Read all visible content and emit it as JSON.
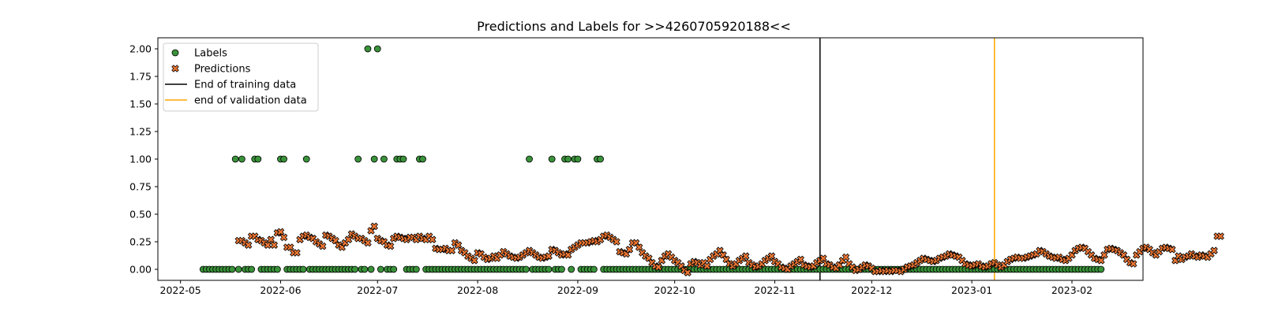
{
  "chart_data": {
    "type": "scatter",
    "title": "Predictions and Labels for >>4260705920188<<",
    "xlabel": "",
    "ylabel": "",
    "x_range": [
      "2022-04-24",
      "2023-02-23"
    ],
    "ylim": [
      -0.1,
      2.1
    ],
    "y_ticks": [
      "0.00",
      "0.25",
      "0.50",
      "0.75",
      "1.00",
      "1.25",
      "1.50",
      "1.75",
      "2.00"
    ],
    "x_ticks": [
      "2022-05",
      "2022-06",
      "2022-07",
      "2022-08",
      "2022-09",
      "2022-10",
      "2022-11",
      "2022-12",
      "2023-01",
      "2023-02"
    ],
    "x_tick_dates": [
      "2022-05-01",
      "2022-06-01",
      "2022-07-01",
      "2022-08-01",
      "2022-09-01",
      "2022-10-01",
      "2022-11-01",
      "2022-12-01",
      "2023-01-01",
      "2023-02-01"
    ],
    "grid": false,
    "legend_position": "top-left",
    "legend": [
      "Labels",
      "Predictions",
      "End of training data",
      "end of validation data"
    ],
    "vlines": [
      {
        "name": "End of training data",
        "date": "2022-11-15",
        "color": "#000000"
      },
      {
        "name": "end of validation data",
        "date": "2023-01-08",
        "color": "#ffa500"
      }
    ],
    "series": [
      {
        "name": "Labels",
        "marker": "circle",
        "color": "#3a923a",
        "start_date": "2022-05-08",
        "values": [
          0,
          0,
          0,
          0,
          0,
          0,
          0,
          0,
          0,
          0,
          1,
          0,
          1,
          0,
          0,
          0,
          1,
          1,
          0,
          0,
          0,
          0,
          0,
          0,
          1,
          1,
          0,
          0,
          0,
          0,
          0,
          0,
          1,
          0,
          0,
          0,
          0,
          0,
          0,
          0,
          0,
          0,
          0,
          0,
          0,
          0,
          0,
          0,
          1,
          0,
          0,
          2,
          0,
          1,
          2,
          0,
          1,
          0,
          0,
          0,
          1,
          1,
          1,
          0,
          0,
          0,
          0,
          1,
          1,
          0,
          0,
          0,
          0,
          0,
          0,
          0,
          0,
          0,
          0,
          0,
          0,
          0,
          0,
          0,
          0,
          0,
          0,
          0,
          0,
          0,
          0,
          0,
          0,
          0,
          0,
          0,
          0,
          0,
          0,
          0,
          0,
          1,
          0,
          0,
          0,
          0,
          0,
          0,
          1,
          0,
          0,
          0,
          1,
          1,
          0,
          1,
          1,
          0,
          0,
          0,
          0,
          0,
          1,
          1,
          0,
          0,
          0,
          0,
          0,
          0,
          0,
          0,
          0,
          0,
          0,
          0,
          0,
          0,
          0,
          0,
          0,
          0,
          0,
          0,
          0,
          0,
          0,
          0,
          0,
          0,
          0,
          0,
          0,
          0,
          0,
          0,
          0,
          0,
          0,
          0,
          0,
          0,
          0,
          0,
          0,
          0,
          0,
          0,
          0,
          0,
          0,
          0,
          0,
          0,
          0,
          0,
          0,
          0,
          0,
          0,
          0,
          0,
          0,
          0,
          0,
          0,
          0,
          0,
          0,
          0,
          0,
          0,
          0,
          0,
          0,
          0,
          0,
          0,
          0,
          0,
          0,
          0,
          0,
          0,
          0,
          0,
          0,
          0,
          0,
          0,
          0,
          0,
          0,
          0,
          0,
          0,
          0,
          0,
          0,
          0,
          0,
          0,
          0,
          0,
          0,
          0,
          0,
          0,
          0,
          0,
          0,
          0,
          0,
          0,
          0,
          0,
          0,
          0,
          0,
          0,
          0,
          0,
          0,
          0,
          0,
          0,
          0,
          0,
          0,
          0,
          0,
          0,
          0,
          0,
          0,
          0,
          0,
          0,
          0,
          0,
          0,
          0,
          0,
          0,
          0,
          0,
          0,
          0,
          0,
          0,
          0,
          0,
          0,
          0,
          0,
          0,
          0,
          0,
          0
        ]
      },
      {
        "name": "Predictions",
        "marker": "x",
        "color": "#ee7733",
        "start_date": "2022-05-19",
        "values": [
          0.26,
          0.26,
          0.24,
          0.22,
          0.3,
          0.3,
          0.27,
          0.26,
          0.24,
          0.22,
          0.27,
          0.22,
          0.33,
          0.34,
          0.29,
          0.2,
          0.2,
          0.15,
          0.15,
          0.27,
          0.3,
          0.31,
          0.29,
          0.28,
          0.25,
          0.23,
          0.21,
          0.31,
          0.3,
          0.28,
          0.26,
          0.22,
          0.2,
          0.24,
          0.27,
          0.32,
          0.3,
          0.28,
          0.28,
          0.26,
          0.24,
          0.35,
          0.39,
          0.28,
          0.26,
          0.25,
          0.22,
          0.21,
          0.28,
          0.3,
          0.29,
          0.28,
          0.27,
          0.29,
          0.29,
          0.27,
          0.3,
          0.28,
          0.27,
          0.3,
          0.27,
          0.19,
          0.18,
          0.18,
          0.19,
          0.17,
          0.17,
          0.24,
          0.22,
          0.17,
          0.15,
          0.12,
          0.1,
          0.08,
          0.15,
          0.14,
          0.11,
          0.09,
          0.1,
          0.12,
          0.1,
          0.13,
          0.16,
          0.14,
          0.12,
          0.11,
          0.1,
          0.11,
          0.13,
          0.15,
          0.17,
          0.15,
          0.13,
          0.11,
          0.1,
          0.11,
          0.12,
          0.18,
          0.17,
          0.15,
          0.13,
          0.14,
          0.13,
          0.18,
          0.2,
          0.22,
          0.24,
          0.24,
          0.24,
          0.25,
          0.26,
          0.25,
          0.27,
          0.3,
          0.31,
          0.29,
          0.27,
          0.25,
          0.16,
          0.15,
          0.14,
          0.18,
          0.24,
          0.24,
          0.2,
          0.15,
          0.12,
          0.1,
          0.06,
          0.03,
          0.02,
          0.08,
          0.12,
          0.14,
          0.11,
          0.08,
          0.06,
          0.03,
          -0.01,
          -0.03,
          0.05,
          0.07,
          0.06,
          0.04,
          0.06,
          0.03,
          0.09,
          0.12,
          0.14,
          0.17,
          0.13,
          0.09,
          0.05,
          0.03,
          0.05,
          0.08,
          0.1,
          0.12,
          0.06,
          0.04,
          0.02,
          0.03,
          0.05,
          0.08,
          0.1,
          0.12,
          0.07,
          0.05,
          0.02,
          0.01,
          0,
          0.03,
          0.05,
          0.07,
          0.09,
          0.04,
          0.03,
          0.02,
          0.03,
          0.06,
          0.08,
          0.1,
          0.05,
          0.04,
          0.02,
          0.01,
          0.04,
          0.08,
          0.11,
          0.05,
          0.02,
          -0.01,
          0,
          0.02,
          0.04,
          0.03,
          0.01,
          -0.02,
          -0.02,
          -0.01,
          -0.02,
          -0.01,
          -0.02,
          -0.01,
          -0.01,
          -0.02,
          0,
          0.02,
          0.03,
          0.04,
          0.06,
          0.08,
          0.1,
          0.09,
          0.08,
          0.07,
          0.08,
          0.1,
          0.11,
          0.12,
          0.14,
          0.13,
          0.12,
          0.11,
          0.08,
          0.05,
          0.04,
          0.03,
          0.04,
          0.05,
          0.03,
          0.02,
          0.03,
          0.05,
          0.06,
          0.04,
          0.02,
          0.04,
          0.07,
          0.09,
          0.1,
          0.11,
          0.1,
          0.1,
          0.11,
          0.12,
          0.13,
          0.14,
          0.17,
          0.16,
          0.14,
          0.12,
          0.11,
          0.1,
          0.11,
          0.09,
          0.08,
          0.1,
          0.13,
          0.17,
          0.19,
          0.2,
          0.19,
          0.16,
          0.13,
          0.1,
          0.09,
          0.08,
          0.13,
          0.18,
          0.19,
          0.18,
          0.17,
          0.15,
          0.13,
          0.09,
          0.06,
          0.05,
          0.13,
          0.16,
          0.19,
          0.2,
          0.18,
          0.15,
          0.13,
          0.16,
          0.19,
          0.2,
          0.19,
          0.18,
          0.08,
          0.12,
          0.09,
          0.11,
          0.12,
          0.14,
          0.12,
          0.11,
          0.13,
          0.12,
          0.11,
          0.14,
          0.17,
          0.3,
          0.3
        ]
      }
    ]
  }
}
